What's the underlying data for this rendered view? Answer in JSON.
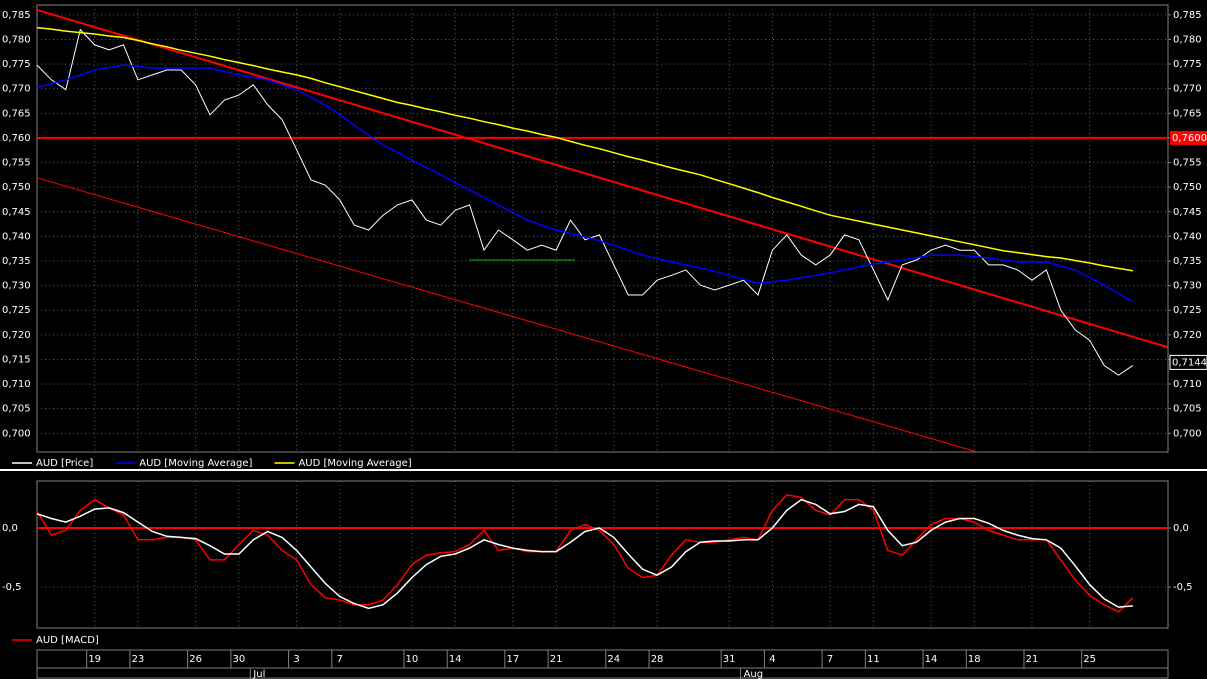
{
  "chart_data": [
    {
      "type": "line",
      "categories": [
        null,
        null,
        null,
        null,
        "19",
        null,
        null,
        "23",
        null,
        null,
        null,
        "26",
        null,
        null,
        "30",
        null,
        null,
        null,
        "3",
        null,
        null,
        "7",
        null,
        null,
        null,
        null,
        "10",
        null,
        null,
        "14",
        null,
        null,
        null,
        "17",
        null,
        null,
        "21",
        null,
        null,
        null,
        "24",
        null,
        null,
        "28",
        null,
        null,
        null,
        null,
        "31",
        null,
        null,
        "4",
        null,
        null,
        null,
        "7",
        null,
        null,
        "11",
        null,
        null,
        null,
        "14",
        null,
        null,
        "18",
        null,
        null,
        null,
        "21",
        null,
        null,
        null,
        "25",
        null,
        null,
        null
      ],
      "months": [
        null,
        null,
        null,
        null,
        null,
        null,
        null,
        null,
        null,
        null,
        null,
        null,
        null,
        null,
        null,
        "Jul",
        null,
        null,
        null,
        null,
        null,
        null,
        null,
        null,
        null,
        null,
        null,
        null,
        null,
        null,
        null,
        null,
        null,
        null,
        null,
        null,
        null,
        null,
        null,
        null,
        null,
        null,
        null,
        null,
        null,
        null,
        null,
        null,
        null,
        "Aug",
        null,
        null,
        null,
        null,
        null,
        null,
        null,
        null,
        null,
        null,
        null,
        null,
        null,
        null,
        null,
        null,
        null,
        null,
        null,
        null,
        null,
        null,
        null,
        null,
        null,
        null,
        null
      ],
      "series": [
        {
          "name": "AUD [Price]",
          "color": "#ffffff",
          "values": [
            0.7748,
            0.7718,
            0.7698,
            0.782,
            0.7789,
            0.7779,
            0.7789,
            0.7718,
            0.7728,
            0.7738,
            0.7738,
            0.7708,
            0.7647,
            0.7677,
            0.7687,
            0.7708,
            0.7667,
            0.7637,
            0.7576,
            0.7515,
            0.7504,
            0.7474,
            0.7423,
            0.7413,
            0.7443,
            0.7464,
            0.7474,
            0.7433,
            0.7423,
            0.7453,
            0.7464,
            0.7372,
            0.7413,
            0.7393,
            0.7372,
            0.7382,
            0.7372,
            0.7433,
            0.7393,
            0.7403,
            0.7342,
            0.7281,
            0.7281,
            0.7311,
            0.7321,
            0.7332,
            0.7301,
            0.7291,
            0.7301,
            0.7311,
            0.7281,
            0.7372,
            0.7403,
            0.7362,
            0.7342,
            0.7362,
            0.7403,
            0.7393,
            0.7332,
            0.7271,
            0.7342,
            0.7352,
            0.7372,
            0.7382,
            0.7372,
            0.7372,
            0.7342,
            0.7342,
            0.7332,
            0.7311,
            0.7332,
            0.725,
            0.721,
            0.7189,
            0.7138,
            0.7118,
            0.7138
          ]
        },
        {
          "name": "AUD [Moving Average]",
          "color": "#0000ff",
          "values": [
            0.7702,
            0.771,
            0.7718,
            0.7728,
            0.7738,
            0.7743,
            0.7748,
            0.7745,
            0.7742,
            0.7742,
            0.7742,
            0.7742,
            0.7742,
            0.7735,
            0.7728,
            0.7723,
            0.7718,
            0.7708,
            0.7698,
            0.7682,
            0.7667,
            0.7647,
            0.7626,
            0.7606,
            0.7586,
            0.757,
            0.7555,
            0.754,
            0.7525,
            0.7509,
            0.7494,
            0.7479,
            0.7464,
            0.7448,
            0.7433,
            0.7423,
            0.7413,
            0.7406,
            0.7399,
            0.7391,
            0.7382,
            0.7372,
            0.7362,
            0.7355,
            0.7348,
            0.7342,
            0.7336,
            0.7329,
            0.7321,
            0.7313,
            0.7305,
            0.7308,
            0.7311,
            0.7316,
            0.7321,
            0.7326,
            0.7332,
            0.7338,
            0.7344,
            0.7348,
            0.7352,
            0.7357,
            0.7362,
            0.7362,
            0.7362,
            0.7359,
            0.7356,
            0.7352,
            0.7348,
            0.7348,
            0.7348,
            0.734,
            0.7332,
            0.7316,
            0.7301,
            0.7284,
            0.7267
          ]
        },
        {
          "name": "AUD [Moving Average]",
          "color": "#ffff00",
          "values": [
            0.7824,
            0.7821,
            0.7817,
            0.7814,
            0.7811,
            0.7807,
            0.7804,
            0.7798,
            0.7791,
            0.7785,
            0.7778,
            0.7772,
            0.7766,
            0.7759,
            0.7753,
            0.7747,
            0.774,
            0.7734,
            0.7728,
            0.7721,
            0.7712,
            0.7704,
            0.7696,
            0.7688,
            0.768,
            0.7672,
            0.7666,
            0.7659,
            0.7653,
            0.7646,
            0.764,
            0.7633,
            0.7627,
            0.762,
            0.7614,
            0.7607,
            0.7601,
            0.7593,
            0.7585,
            0.7578,
            0.757,
            0.7562,
            0.7555,
            0.7547,
            0.7539,
            0.7532,
            0.7525,
            0.7516,
            0.7507,
            0.7498,
            0.7489,
            0.7479,
            0.747,
            0.7461,
            0.7452,
            0.7443,
            0.7437,
            0.7431,
            0.7425,
            0.7419,
            0.7413,
            0.7407,
            0.7401,
            0.7395,
            0.7389,
            0.7383,
            0.7377,
            0.7371,
            0.7367,
            0.7363,
            0.7359,
            0.7356,
            0.7351,
            0.7346,
            0.734,
            0.7335,
            0.733
          ]
        }
      ],
      "ylim": [
        0.6962,
        0.787
      ],
      "yticks": [
        {
          "value": 0.7,
          "label": "0,700"
        },
        {
          "value": 0.705,
          "label": "0,705"
        },
        {
          "value": 0.71,
          "label": "0,710"
        },
        {
          "value": 0.715,
          "label": "0,715"
        },
        {
          "value": 0.72,
          "label": "0,720"
        },
        {
          "value": 0.725,
          "label": "0,725"
        },
        {
          "value": 0.73,
          "label": "0,730"
        },
        {
          "value": 0.735,
          "label": "0,735"
        },
        {
          "value": 0.74,
          "label": "0,740"
        },
        {
          "value": 0.745,
          "label": "0,745"
        },
        {
          "value": 0.75,
          "label": "0,750"
        },
        {
          "value": 0.755,
          "label": "0,755"
        },
        {
          "value": 0.76,
          "label": "0,760"
        },
        {
          "value": 0.765,
          "label": "0,765"
        },
        {
          "value": 0.77,
          "label": "0,770"
        },
        {
          "value": 0.775,
          "label": "0,775"
        },
        {
          "value": 0.78,
          "label": "0,780"
        },
        {
          "value": 0.785,
          "label": "0,785"
        }
      ],
      "grid": true,
      "reference_lines": [
        {
          "value": 0.76,
          "label": "0,7600",
          "color": "#ff0000"
        }
      ],
      "last_price": {
        "value": 0.7144,
        "label": "0,7144"
      },
      "trendlines": [
        {
          "color": "#ff0000",
          "x": [
            0,
            78.4
          ],
          "values": [
            0.786,
            0.7175
          ]
        },
        {
          "color": "#ff0000",
          "x": [
            0,
            65.2
          ],
          "values": [
            0.7519,
            0.6962
          ]
        },
        {
          "color": "#00c000",
          "x": [
            30,
            37.3
          ],
          "values": [
            0.7352,
            0.7352
          ]
        }
      ]
    },
    {
      "type": "line",
      "series": [
        {
          "name": "AUD [MACD]",
          "color": "#ff0000",
          "values": [
            0.14,
            -0.06,
            -0.02,
            0.15,
            0.24,
            0.17,
            0.11,
            -0.1,
            -0.1,
            -0.08,
            -0.08,
            -0.1,
            -0.27,
            -0.27,
            -0.14,
            -0.02,
            -0.06,
            -0.19,
            -0.27,
            -0.48,
            -0.59,
            -0.61,
            -0.65,
            -0.65,
            -0.61,
            -0.48,
            -0.31,
            -0.23,
            -0.21,
            -0.2,
            -0.14,
            -0.02,
            -0.19,
            -0.17,
            -0.2,
            -0.2,
            -0.2,
            -0.02,
            0.03,
            -0.02,
            -0.14,
            -0.34,
            -0.42,
            -0.4,
            -0.23,
            -0.1,
            -0.12,
            -0.12,
            -0.1,
            -0.08,
            -0.1,
            0.15,
            0.28,
            0.26,
            0.15,
            0.11,
            0.24,
            0.24,
            0.15,
            -0.19,
            -0.23,
            -0.1,
            0.03,
            0.08,
            0.08,
            0.05,
            -0.02,
            -0.06,
            -0.1,
            -0.1,
            -0.1,
            -0.27,
            -0.44,
            -0.57,
            -0.65,
            -0.71,
            -0.59
          ]
        },
        {
          "color": "#ffffff",
          "values": [
            0.12,
            0.08,
            0.05,
            0.1,
            0.16,
            0.17,
            0.13,
            0.05,
            -0.03,
            -0.07,
            -0.08,
            -0.09,
            -0.15,
            -0.22,
            -0.22,
            -0.1,
            -0.03,
            -0.08,
            -0.19,
            -0.33,
            -0.47,
            -0.58,
            -0.64,
            -0.68,
            -0.65,
            -0.55,
            -0.42,
            -0.31,
            -0.24,
            -0.22,
            -0.17,
            -0.1,
            -0.14,
            -0.17,
            -0.19,
            -0.2,
            -0.2,
            -0.12,
            -0.03,
            0.0,
            -0.08,
            -0.22,
            -0.35,
            -0.4,
            -0.33,
            -0.2,
            -0.12,
            -0.11,
            -0.11,
            -0.1,
            -0.1,
            0.0,
            0.15,
            0.24,
            0.2,
            0.12,
            0.14,
            0.2,
            0.18,
            -0.02,
            -0.15,
            -0.12,
            -0.02,
            0.05,
            0.08,
            0.08,
            0.04,
            -0.02,
            -0.06,
            -0.09,
            -0.1,
            -0.17,
            -0.32,
            -0.48,
            -0.6,
            -0.67,
            -0.66
          ]
        }
      ],
      "ylim": [
        -0.847,
        0.398
      ],
      "yticks": [
        {
          "value": -0.5,
          "label": "-0,5"
        },
        {
          "value": 0,
          "label": "0,0"
        }
      ],
      "grid": true,
      "reference_lines": [
        {
          "value": 0,
          "color": "#ff0000"
        }
      ]
    }
  ]
}
